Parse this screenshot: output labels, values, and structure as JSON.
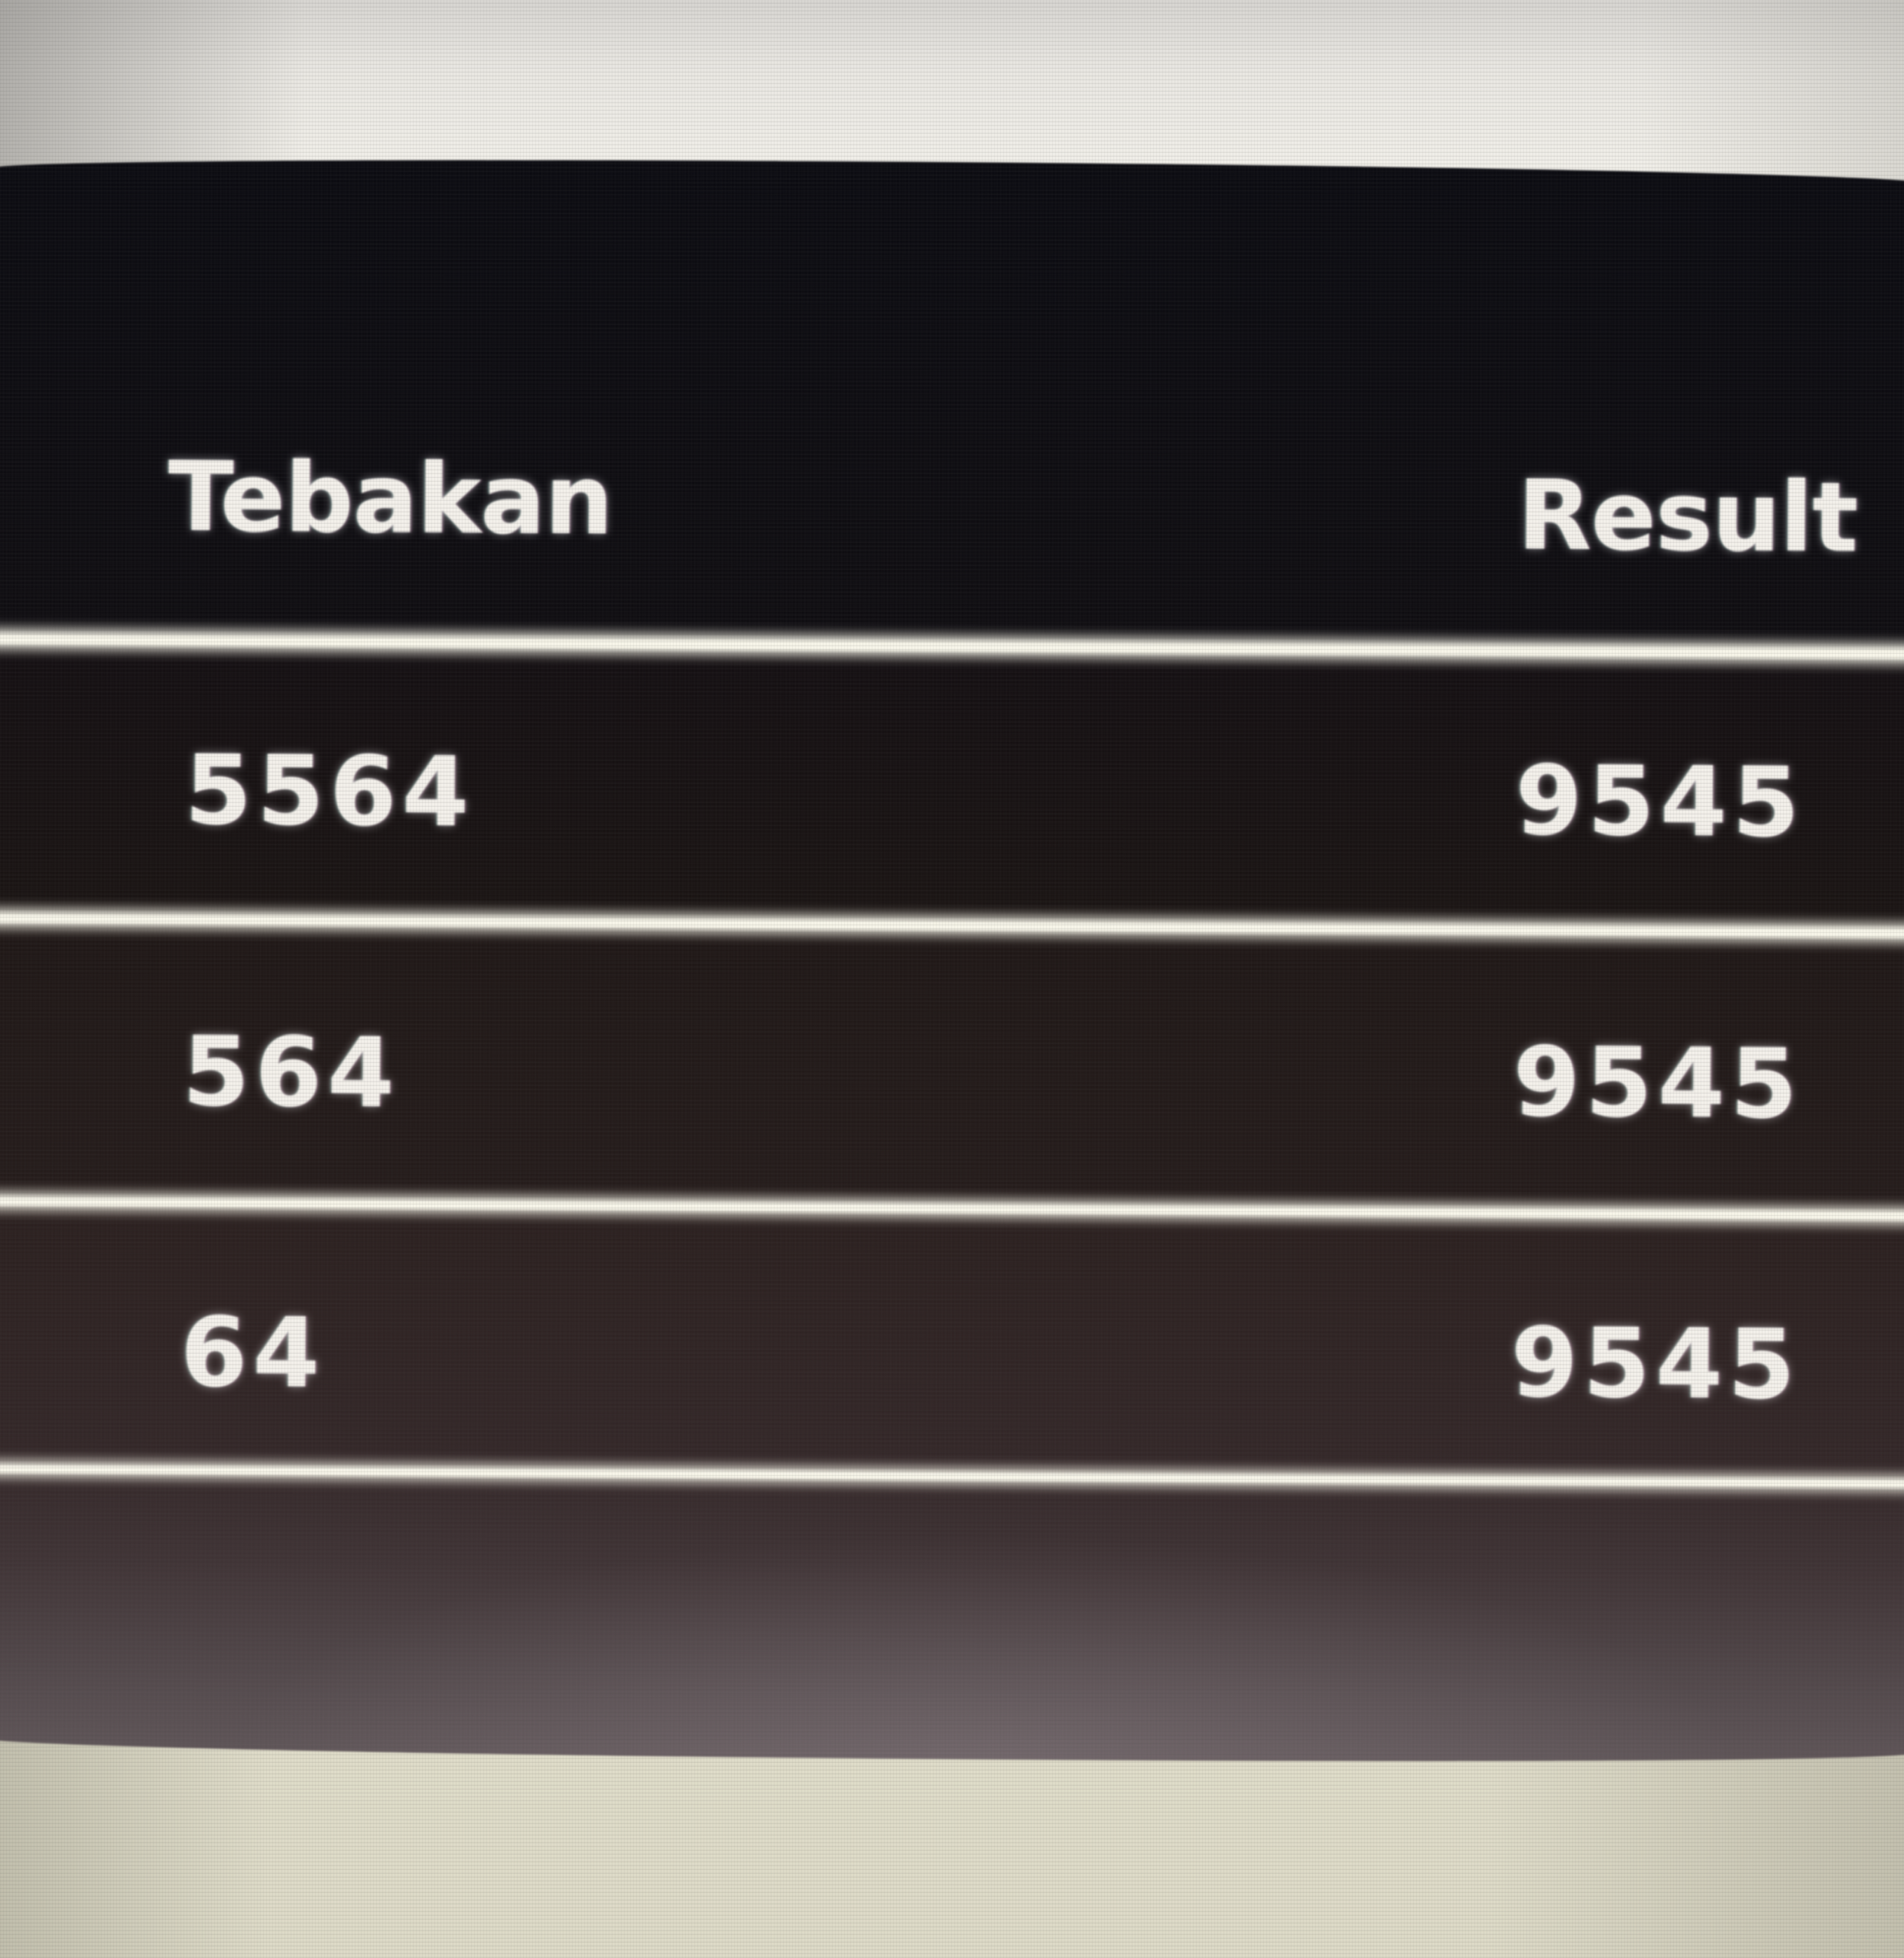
{
  "screen": {
    "table": {
      "columns": [
        {
          "label": "Tebakan"
        },
        {
          "label": "Result"
        }
      ],
      "rows": [
        {
          "guess": "5564",
          "result": "9545"
        },
        {
          "guess": "564",
          "result": "9545"
        },
        {
          "guess": "64",
          "result": "9545"
        }
      ]
    },
    "colors": {
      "text": "#f3f0ea",
      "separator": "#f7f5e9",
      "panel_top": "#0a0a10",
      "panel_bottom": "#5f5558",
      "backdrop_top": "#f1efe9",
      "backdrop_bottom": "#e2dfcc"
    }
  }
}
